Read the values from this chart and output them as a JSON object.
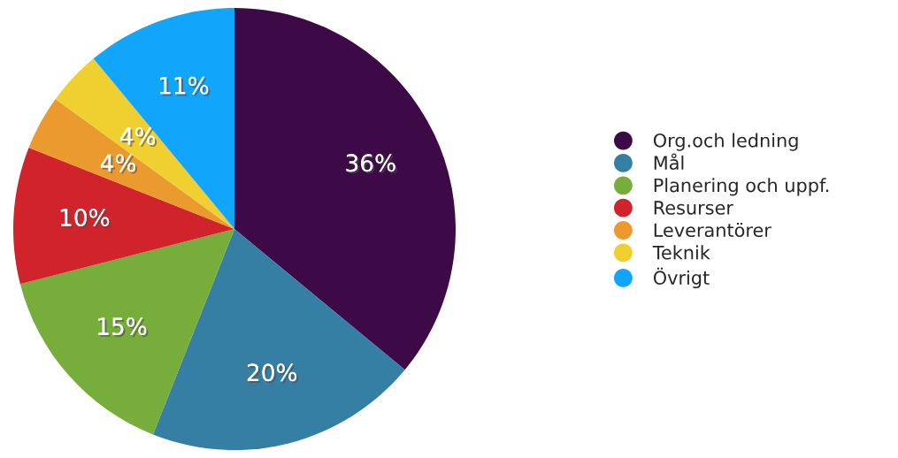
{
  "chart_data": {
    "type": "pie",
    "categories": [
      "Org.och ledning",
      "Mål",
      "Planering och uppf.",
      "Resurser",
      "Leverantörer",
      "Teknik",
      "Övrigt"
    ],
    "values": [
      36,
      20,
      15,
      10,
      4,
      4,
      11
    ],
    "colors": [
      "#3d0a47",
      "#357fa4",
      "#77ad3a",
      "#d0232b",
      "#eb9a2f",
      "#f0d030",
      "#11a5fc"
    ],
    "value_labels": [
      "36%",
      "20%",
      "15%",
      "10%",
      "4%",
      "4%",
      "11%"
    ],
    "legend": "right"
  }
}
